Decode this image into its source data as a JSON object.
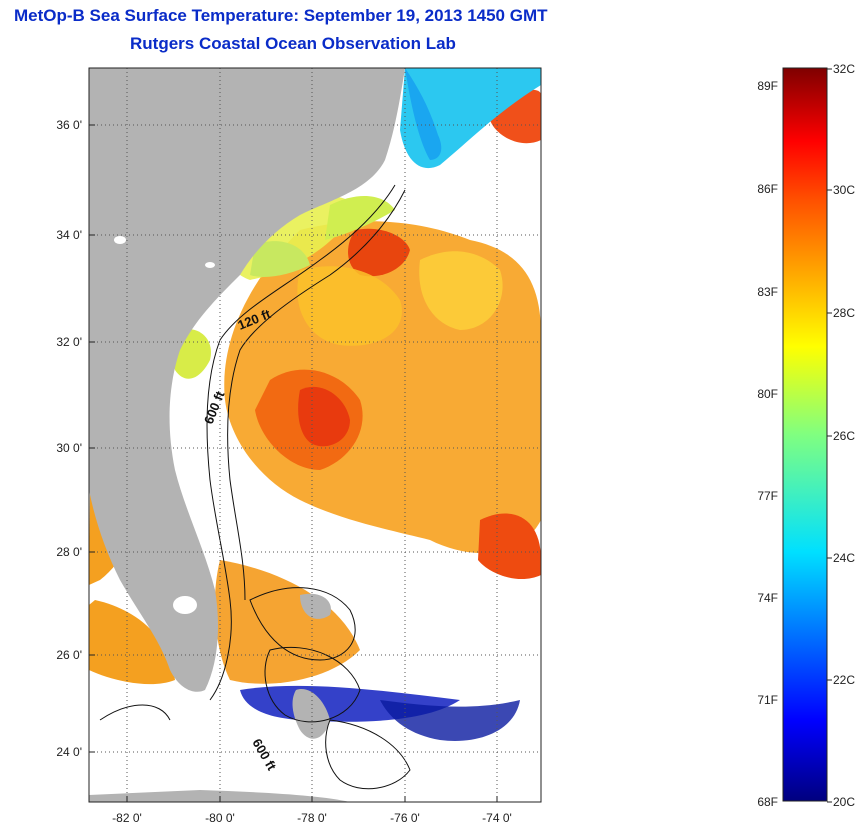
{
  "title": {
    "line1": "MetOp-B Sea Surface Temperature:  September 19, 2013 1450 GMT",
    "line2": "Rutgers Coastal Ocean Observation Lab"
  },
  "map": {
    "lon_ticks": [
      "-82 0'",
      "-80 0'",
      "-78 0'",
      "-76 0'",
      "-74 0'"
    ],
    "lat_ticks": [
      "36 0'",
      "34 0'",
      "32 0'",
      "30 0'",
      "28 0'",
      "26 0'",
      "24 0'"
    ],
    "contour_labels": [
      "120 ft",
      "600 ft",
      "600 ft"
    ],
    "land_color": "#b3b3b3",
    "cloud_color": "#ffffff"
  },
  "colorbar": {
    "fahrenheit_labels": [
      "89F",
      "86F",
      "83F",
      "80F",
      "77F",
      "74F",
      "71F",
      "68F"
    ],
    "celsius_labels": [
      "32C",
      "30C",
      "28C",
      "26C",
      "24C",
      "22C",
      "20C"
    ],
    "range_c": [
      20,
      32
    ],
    "colormap": "jet"
  }
}
